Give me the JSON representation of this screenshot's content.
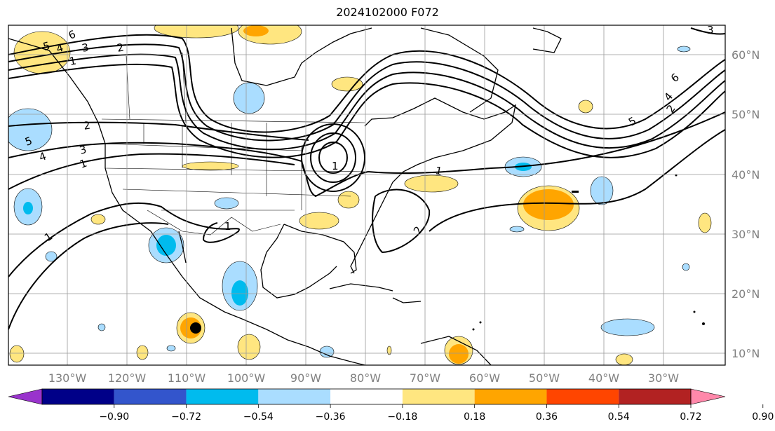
{
  "title": "2024102000 F072",
  "lon_labels": [
    "130°W",
    "120°W",
    "110°W",
    "100°W",
    "90°W",
    "80°W",
    "70°W",
    "60°W",
    "50°W",
    "40°W",
    "30°W"
  ],
  "lat_labels": [
    "60°N",
    "50°N",
    "40°N",
    "30°N",
    "20°N",
    "10°N"
  ],
  "colorbar": {
    "ticks": [
      "−0.90",
      "−0.72",
      "−0.54",
      "−0.36",
      "−0.18",
      "0.18",
      "0.36",
      "0.54",
      "0.72",
      "0.90"
    ],
    "colors": [
      "#9933cc",
      "#000088",
      "#3355cc",
      "#00bbee",
      "#aaddff",
      "#ffffff",
      "#ffe680",
      "#ffa500",
      "#ff4500",
      "#b22222",
      "#ff88aa"
    ]
  },
  "contour_labels": [
    "6",
    "5",
    "4",
    "3",
    "2",
    "1",
    "1",
    "2",
    "3",
    "4",
    "5",
    "1",
    "1",
    "1",
    "2",
    "1",
    "6",
    "5",
    "4",
    "3",
    "2"
  ],
  "colors": {
    "positive_light": "#ffe680",
    "positive_mid": "#ffa500",
    "negative_light": "#aaddff",
    "negative_mid": "#00bbee"
  }
}
